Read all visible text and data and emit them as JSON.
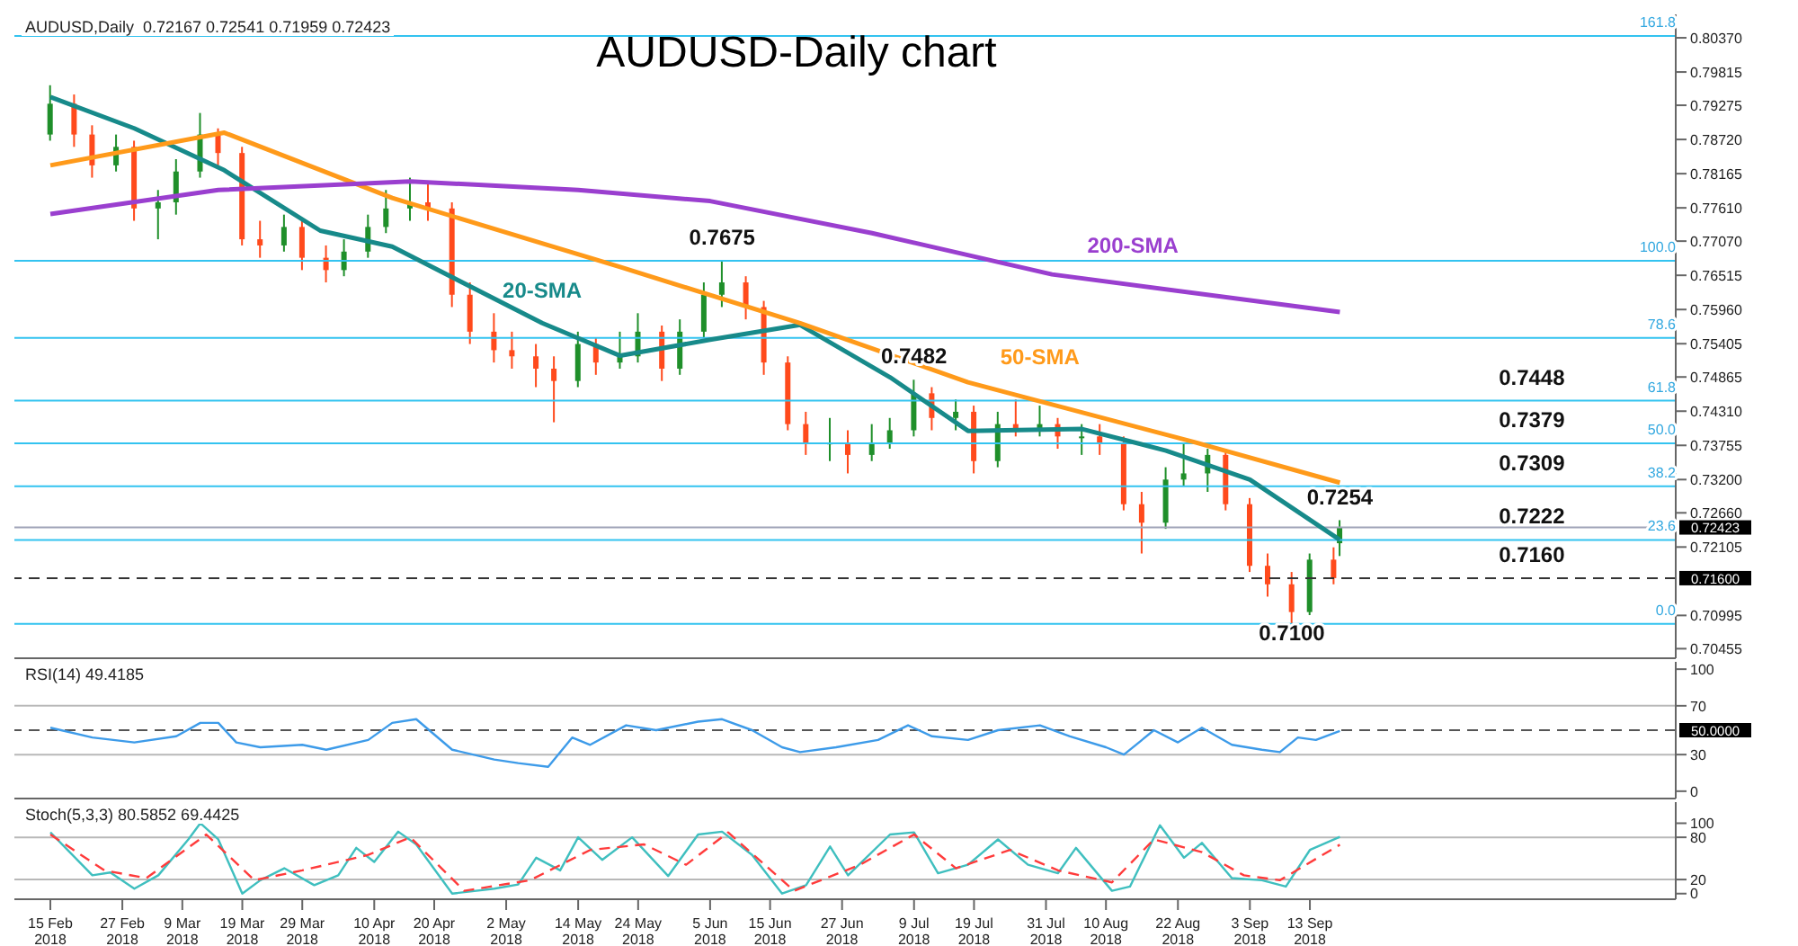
{
  "chart_data": [
    {
      "type": "candlestick",
      "title": "AUDUSD-Daily chart",
      "tick_labels": "y",
      "x": [
        "2018-02-15",
        "2018-02-19",
        "2018-02-22",
        "2018-02-26",
        "2018-03-01",
        "2018-03-05",
        "2018-03-08",
        "2018-03-12",
        "2018-03-15",
        "2018-03-19",
        "2018-03-22",
        "2018-03-26",
        "2018-03-29",
        "2018-04-02",
        "2018-04-05",
        "2018-04-09",
        "2018-04-12",
        "2018-04-16",
        "2018-04-19",
        "2018-04-23",
        "2018-04-26",
        "2018-04-30",
        "2018-05-03",
        "2018-05-07",
        "2018-05-10",
        "2018-05-14",
        "2018-05-17",
        "2018-05-21",
        "2018-05-24",
        "2018-05-28",
        "2018-05-31",
        "2018-06-04",
        "2018-06-07",
        "2018-06-11",
        "2018-06-14",
        "2018-06-18",
        "2018-06-21",
        "2018-06-25",
        "2018-06-28",
        "2018-07-02",
        "2018-07-05",
        "2018-07-09",
        "2018-07-12",
        "2018-07-16",
        "2018-07-19",
        "2018-07-23",
        "2018-07-26",
        "2018-07-30",
        "2018-08-02",
        "2018-08-06",
        "2018-08-09",
        "2018-08-13",
        "2018-08-16",
        "2018-08-20",
        "2018-08-23",
        "2018-08-27",
        "2018-08-30",
        "2018-09-03",
        "2018-09-06",
        "2018-09-10",
        "2018-09-13",
        "2018-09-17",
        "2018-09-18"
      ],
      "ohlc": [
        [
          0.788,
          0.796,
          0.787,
          0.793
        ],
        [
          0.793,
          0.7945,
          0.786,
          0.788
        ],
        [
          0.788,
          0.7895,
          0.781,
          0.783
        ],
        [
          0.783,
          0.788,
          0.782,
          0.786
        ],
        [
          0.786,
          0.787,
          0.774,
          0.776
        ],
        [
          0.776,
          0.779,
          0.771,
          0.777
        ],
        [
          0.777,
          0.784,
          0.775,
          0.782
        ],
        [
          0.782,
          0.7915,
          0.781,
          0.788
        ],
        [
          0.788,
          0.789,
          0.783,
          0.785
        ],
        [
          0.785,
          0.786,
          0.77,
          0.771
        ],
        [
          0.771,
          0.774,
          0.768,
          0.77
        ],
        [
          0.77,
          0.775,
          0.769,
          0.773
        ],
        [
          0.773,
          0.774,
          0.766,
          0.768
        ],
        [
          0.768,
          0.77,
          0.764,
          0.766
        ],
        [
          0.766,
          0.771,
          0.765,
          0.769
        ],
        [
          0.769,
          0.775,
          0.768,
          0.773
        ],
        [
          0.773,
          0.779,
          0.772,
          0.776
        ],
        [
          0.776,
          0.781,
          0.774,
          0.777
        ],
        [
          0.777,
          0.78,
          0.774,
          0.776
        ],
        [
          0.776,
          0.777,
          0.76,
          0.762
        ],
        [
          0.762,
          0.764,
          0.754,
          0.756
        ],
        [
          0.756,
          0.759,
          0.751,
          0.753
        ],
        [
          0.753,
          0.756,
          0.75,
          0.752
        ],
        [
          0.752,
          0.754,
          0.747,
          0.75
        ],
        [
          0.75,
          0.752,
          0.7413,
          0.748
        ],
        [
          0.748,
          0.756,
          0.747,
          0.754
        ],
        [
          0.754,
          0.755,
          0.749,
          0.751
        ],
        [
          0.751,
          0.756,
          0.75,
          0.752
        ],
        [
          0.752,
          0.759,
          0.751,
          0.756
        ],
        [
          0.756,
          0.757,
          0.748,
          0.75
        ],
        [
          0.75,
          0.758,
          0.749,
          0.756
        ],
        [
          0.756,
          0.764,
          0.755,
          0.762
        ],
        [
          0.762,
          0.7675,
          0.76,
          0.764
        ],
        [
          0.764,
          0.765,
          0.758,
          0.76
        ],
        [
          0.76,
          0.761,
          0.749,
          0.751
        ],
        [
          0.751,
          0.752,
          0.74,
          0.741
        ],
        [
          0.741,
          0.743,
          0.736,
          0.738
        ],
        [
          0.738,
          0.742,
          0.735,
          0.738
        ],
        [
          0.738,
          0.74,
          0.733,
          0.736
        ],
        [
          0.736,
          0.741,
          0.735,
          0.738
        ],
        [
          0.738,
          0.742,
          0.737,
          0.74
        ],
        [
          0.74,
          0.7482,
          0.739,
          0.746
        ],
        [
          0.746,
          0.747,
          0.74,
          0.742
        ],
        [
          0.742,
          0.745,
          0.74,
          0.743
        ],
        [
          0.743,
          0.744,
          0.733,
          0.735
        ],
        [
          0.735,
          0.743,
          0.734,
          0.741
        ],
        [
          0.741,
          0.745,
          0.739,
          0.74
        ],
        [
          0.74,
          0.744,
          0.739,
          0.741
        ],
        [
          0.741,
          0.742,
          0.737,
          0.739
        ],
        [
          0.739,
          0.741,
          0.736,
          0.739
        ],
        [
          0.739,
          0.741,
          0.736,
          0.738
        ],
        [
          0.738,
          0.739,
          0.727,
          0.728
        ],
        [
          0.728,
          0.73,
          0.72,
          0.725
        ],
        [
          0.725,
          0.734,
          0.724,
          0.732
        ],
        [
          0.732,
          0.738,
          0.731,
          0.733
        ],
        [
          0.733,
          0.737,
          0.73,
          0.736
        ],
        [
          0.736,
          0.737,
          0.727,
          0.728
        ],
        [
          0.728,
          0.729,
          0.717,
          0.718
        ],
        [
          0.718,
          0.72,
          0.713,
          0.715
        ],
        [
          0.715,
          0.717,
          0.7085,
          0.7105
        ],
        [
          0.7105,
          0.72,
          0.71,
          0.719
        ],
        [
          0.719,
          0.721,
          0.715,
          0.716
        ],
        [
          0.72167,
          0.72541,
          0.71959,
          0.72423
        ]
      ],
      "series": [
        {
          "type": "line",
          "name": "20-SMA",
          "color": "#178a8a",
          "x": [
            "2018-02-15",
            "2018-03-01",
            "2018-03-16",
            "2018-04-01",
            "2018-04-13",
            "2018-05-08",
            "2018-05-21",
            "2018-06-05",
            "2018-06-20",
            "2018-07-05",
            "2018-07-18",
            "2018-08-06",
            "2018-08-20",
            "2018-09-03",
            "2018-09-18"
          ],
          "values": [
            0.7941,
            0.789,
            0.7822,
            0.7724,
            0.7698,
            0.7574,
            0.7521,
            0.7547,
            0.7571,
            0.7486,
            0.7399,
            0.7402,
            0.7367,
            0.732,
            0.7222
          ]
        },
        {
          "type": "line",
          "name": "50-SMA",
          "color": "#ff9a1a",
          "x": [
            "2018-02-15",
            "2018-03-16",
            "2018-04-13",
            "2018-05-21",
            "2018-06-20",
            "2018-07-18",
            "2018-08-25",
            "2018-09-18"
          ],
          "values": [
            0.783,
            0.7883,
            0.7777,
            0.7665,
            0.7574,
            0.7478,
            0.738,
            0.7315
          ]
        },
        {
          "type": "line",
          "name": "200-SMA",
          "color": "#9a3fcf",
          "x": [
            "2018-02-15",
            "2018-03-15",
            "2018-04-16",
            "2018-05-14",
            "2018-06-05",
            "2018-07-02",
            "2018-08-01",
            "2018-09-18"
          ],
          "values": [
            0.7751,
            0.779,
            0.7804,
            0.779,
            0.7772,
            0.772,
            0.7653,
            0.7592
          ]
        }
      ],
      "xlim": [
        "2018-02-09",
        "2018-11-13"
      ],
      "ylim": [
        0.703,
        0.8075
      ],
      "yticks": [
        {
          "value": 0.8037,
          "label": "0.80370"
        },
        {
          "value": 0.79815,
          "label": "0.79815"
        },
        {
          "value": 0.79275,
          "label": "0.79275"
        },
        {
          "value": 0.7872,
          "label": "0.78720"
        },
        {
          "value": 0.78165,
          "label": "0.78165"
        },
        {
          "value": 0.7761,
          "label": "0.77610"
        },
        {
          "value": 0.7707,
          "label": "0.77070"
        },
        {
          "value": 0.76515,
          "label": "0.76515"
        },
        {
          "value": 0.7596,
          "label": "0.75960"
        },
        {
          "value": 0.75405,
          "label": "0.75405"
        },
        {
          "value": 0.74865,
          "label": "0.74865"
        },
        {
          "value": 0.7431,
          "label": "0.74310"
        },
        {
          "value": 0.73755,
          "label": "0.73755"
        },
        {
          "value": 0.732,
          "label": "0.73200"
        },
        {
          "value": 0.7266,
          "label": "0.72660"
        },
        {
          "value": 0.72105,
          "label": "0.72105"
        },
        {
          "value": 0.70995,
          "label": "0.70995"
        },
        {
          "value": 0.70455,
          "label": "0.70455"
        }
      ],
      "ref_lines": [
        {
          "axis": "y",
          "value": 0.7086,
          "color": "#33c3f0"
        },
        {
          "axis": "y",
          "value": 0.7222,
          "color": "#33c3f0"
        },
        {
          "axis": "y",
          "value": 0.7309,
          "color": "#33c3f0"
        },
        {
          "axis": "y",
          "value": 0.7379,
          "color": "#33c3f0"
        },
        {
          "axis": "y",
          "value": 0.7448,
          "color": "#33c3f0"
        },
        {
          "axis": "y",
          "value": 0.755,
          "color": "#33c3f0"
        },
        {
          "axis": "y",
          "value": 0.7675,
          "color": "#33c3f0"
        },
        {
          "axis": "y",
          "value": 0.804,
          "color": "#33c3f0"
        },
        {
          "axis": "y",
          "value": 0.72423,
          "label": "0.72423",
          "color": "#a0a4b8"
        },
        {
          "axis": "y",
          "value": 0.716,
          "label": "0.71600",
          "color": "#333333",
          "line_style": "dashed"
        }
      ],
      "annotations": [
        "AUDUSD,Daily  0.72167 0.72541 0.71959 0.72423",
        {
          "text": "0.0",
          "x": "2018-11-13",
          "y": 0.7086
        },
        {
          "text": "23.6",
          "x": "2018-11-13",
          "y": 0.7222
        },
        {
          "text": "38.2",
          "x": "2018-11-13",
          "y": 0.7309
        },
        {
          "text": "50.0",
          "x": "2018-11-13",
          "y": 0.7379
        },
        {
          "text": "61.8",
          "x": "2018-11-13",
          "y": 0.7448
        },
        {
          "text": "78.6",
          "x": "2018-11-13",
          "y": 0.755
        },
        {
          "text": "100.0",
          "x": "2018-11-13",
          "y": 0.7675
        },
        {
          "text": "161.8",
          "x": "2018-11-13",
          "y": 0.804
        },
        {
          "text": "0.7675",
          "x": "2018-06-07",
          "y": 0.7675
        },
        {
          "text": "0.7482",
          "x": "2018-07-09",
          "y": 0.7482
        },
        {
          "text": "0.7254",
          "x": "2018-09-18",
          "y": 0.7254
        },
        {
          "text": "0.7100",
          "x": "2018-09-10",
          "y": 0.71
        },
        {
          "text": "0.7448",
          "x": "2018-10-20",
          "y": 0.7448
        },
        {
          "text": "0.7379",
          "x": "2018-10-20",
          "y": 0.7379
        },
        {
          "text": "0.7309",
          "x": "2018-10-20",
          "y": 0.7309
        },
        {
          "text": "0.7222",
          "x": "2018-10-20",
          "y": 0.7222
        },
        {
          "text": "0.7160",
          "x": "2018-10-20",
          "y": 0.716
        }
      ]
    },
    {
      "type": "line",
      "tick_labels": "y",
      "xlim": [
        "2018-02-09",
        "2018-11-13"
      ],
      "ylim": [
        -6,
        106
      ],
      "yticks": [
        0,
        30,
        70,
        100
      ],
      "series": [
        {
          "color": "#3d9be9",
          "x": [
            "2018-02-15",
            "2018-02-22",
            "2018-03-01",
            "2018-03-08",
            "2018-03-12",
            "2018-03-15",
            "2018-03-18",
            "2018-03-22",
            "2018-03-29",
            "2018-04-02",
            "2018-04-09",
            "2018-04-13",
            "2018-04-17",
            "2018-04-23",
            "2018-04-30",
            "2018-05-04",
            "2018-05-09",
            "2018-05-13",
            "2018-05-16",
            "2018-05-22",
            "2018-05-27",
            "2018-06-03",
            "2018-06-07",
            "2018-06-12",
            "2018-06-17",
            "2018-06-20",
            "2018-06-26",
            "2018-07-03",
            "2018-07-08",
            "2018-07-12",
            "2018-07-18",
            "2018-07-23",
            "2018-07-30",
            "2018-08-04",
            "2018-08-10",
            "2018-08-13",
            "2018-08-18",
            "2018-08-22",
            "2018-08-26",
            "2018-08-31",
            "2018-09-05",
            "2018-09-08",
            "2018-09-11",
            "2018-09-14",
            "2018-09-18"
          ],
          "values": [
            52,
            44,
            40,
            45,
            56,
            56,
            40,
            36,
            38,
            34,
            42,
            56,
            59,
            34,
            26,
            23,
            20,
            44,
            38,
            54,
            50,
            57,
            59,
            50,
            36,
            32,
            36,
            42,
            54,
            45,
            42,
            50,
            54,
            45,
            36,
            30,
            50,
            40,
            52,
            38,
            34,
            32,
            44,
            42,
            49.4185
          ]
        }
      ],
      "ref_lines": [
        {
          "axis": "y",
          "value": 70,
          "color": "#b8b8b8"
        },
        {
          "axis": "y",
          "value": 30,
          "color": "#b8b8b8"
        },
        {
          "axis": "y",
          "value": 50,
          "label": "50.0000",
          "color": "#555555",
          "line_style": "dashed"
        }
      ],
      "annotations": [
        "RSI(14) 49.4185"
      ]
    },
    {
      "type": "line",
      "xlim": [
        "2018-02-09",
        "2018-11-13"
      ],
      "ylim": [
        -8,
        130
      ],
      "yticks": [
        0,
        20,
        80,
        100
      ],
      "xticks": [
        {
          "value": "2018-02-15",
          "label": "15 Feb 2018"
        },
        {
          "value": "2018-02-27",
          "label": "27 Feb 2018"
        },
        {
          "value": "2018-03-09",
          "label": "9 Mar 2018"
        },
        {
          "value": "2018-03-19",
          "label": "19 Mar 2018"
        },
        {
          "value": "2018-03-29",
          "label": "29 Mar 2018"
        },
        {
          "value": "2018-04-10",
          "label": "10 Apr 2018"
        },
        {
          "value": "2018-04-20",
          "label": "20 Apr 2018"
        },
        {
          "value": "2018-05-02",
          "label": "2 May 2018"
        },
        {
          "value": "2018-05-14",
          "label": "14 May 2018"
        },
        {
          "value": "2018-05-24",
          "label": "24 May 2018"
        },
        {
          "value": "2018-06-05",
          "label": "5 Jun 2018"
        },
        {
          "value": "2018-06-15",
          "label": "15 Jun 2018"
        },
        {
          "value": "2018-06-27",
          "label": "27 Jun 2018"
        },
        {
          "value": "2018-07-09",
          "label": "9 Jul 2018"
        },
        {
          "value": "2018-07-19",
          "label": "19 Jul 2018"
        },
        {
          "value": "2018-07-31",
          "label": "31 Jul 2018"
        },
        {
          "value": "2018-08-10",
          "label": "10 Aug 2018"
        },
        {
          "value": "2018-08-22",
          "label": "22 Aug 2018"
        },
        {
          "value": "2018-09-03",
          "label": "3 Sep 2018"
        },
        {
          "value": "2018-09-13",
          "label": "13 Sep 2018"
        }
      ],
      "series": [
        {
          "color": "#3fbfbf",
          "x": [
            "2018-02-15",
            "2018-02-22",
            "2018-02-25",
            "2018-03-01",
            "2018-03-05",
            "2018-03-10",
            "2018-03-12",
            "2018-03-15",
            "2018-03-19",
            "2018-03-22",
            "2018-03-26",
            "2018-03-31",
            "2018-04-04",
            "2018-04-07",
            "2018-04-10",
            "2018-04-14",
            "2018-04-17",
            "2018-04-23",
            "2018-04-30",
            "2018-05-04",
            "2018-05-07",
            "2018-05-11",
            "2018-05-14",
            "2018-05-18",
            "2018-05-23",
            "2018-05-29",
            "2018-06-03",
            "2018-06-07",
            "2018-06-12",
            "2018-06-17",
            "2018-06-21",
            "2018-06-25",
            "2018-06-28",
            "2018-07-05",
            "2018-07-09",
            "2018-07-13",
            "2018-07-18",
            "2018-07-23",
            "2018-07-28",
            "2018-08-02",
            "2018-08-05",
            "2018-08-11",
            "2018-08-14",
            "2018-08-19",
            "2018-08-23",
            "2018-08-26",
            "2018-08-31",
            "2018-09-05",
            "2018-09-09",
            "2018-09-13",
            "2018-09-18"
          ],
          "values": [
            87,
            26,
            30,
            7,
            26,
            77,
            100,
            77,
            0,
            19,
            36,
            12,
            26,
            65,
            45,
            88,
            70,
            0,
            7,
            13,
            51,
            33,
            80,
            48,
            80,
            25,
            84,
            88,
            55,
            0,
            12,
            67,
            26,
            84,
            87,
            29,
            41,
            77,
            41,
            29,
            65,
            4,
            10,
            97,
            51,
            72,
            22,
            19,
            10,
            62,
            80.5852
          ]
        },
        {
          "color": "#ff3b3b",
          "line_style": "dashed",
          "x": [
            "2018-02-15",
            "2018-02-24",
            "2018-03-03",
            "2018-03-13",
            "2018-03-21",
            "2018-03-29",
            "2018-04-09",
            "2018-04-16",
            "2018-04-25",
            "2018-05-06",
            "2018-05-16",
            "2018-05-25",
            "2018-06-01",
            "2018-06-08",
            "2018-06-19",
            "2018-06-30",
            "2018-07-09",
            "2018-07-16",
            "2018-07-25",
            "2018-08-02",
            "2018-08-11",
            "2018-08-18",
            "2018-08-26",
            "2018-09-02",
            "2018-09-08",
            "2018-09-18"
          ],
          "values": [
            84,
            33,
            22,
            84,
            19,
            33,
            55,
            80,
            4,
            19,
            62,
            70,
            41,
            87,
            4,
            41,
            84,
            36,
            62,
            33,
            16,
            77,
            59,
            26,
            19,
            69.4425
          ]
        }
      ],
      "ref_lines": [
        {
          "axis": "y",
          "value": 80,
          "color": "#b8b8b8"
        },
        {
          "axis": "y",
          "value": 20,
          "color": "#b8b8b8"
        }
      ],
      "annotations": [
        "Stoch(5,3,3) 80.5852 69.4425"
      ]
    }
  ]
}
